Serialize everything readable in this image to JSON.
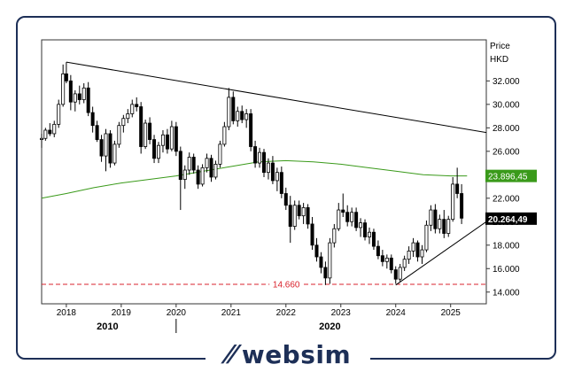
{
  "chart_data": {
    "type": "candlestick",
    "axis": {
      "title_line1": "Price",
      "title_line2": "HKD",
      "y_ticks": [
        14,
        16,
        18,
        20,
        22,
        24,
        26,
        28,
        30,
        32
      ],
      "y_tick_labels": [
        "14.000",
        "16.000",
        "18.000",
        "20.000",
        "22.000",
        "24.000",
        "26.000",
        "28.000",
        "30.000",
        "32.000"
      ],
      "ylim": [
        13,
        35.5
      ],
      "x_ticks": [
        2018,
        2019,
        2020,
        2021,
        2022,
        2023,
        2024,
        2025
      ],
      "x_tick_labels": [
        "2018",
        "2019",
        "2020",
        "2021",
        "2022",
        "2023",
        "2024",
        "2025"
      ],
      "xlim": [
        2017.55,
        2025.65
      ],
      "x_group_labels": [
        {
          "x": 2018.75,
          "label": "2010"
        },
        {
          "x": 2022.8,
          "label": "2020"
        }
      ]
    },
    "moving_average": {
      "color": "#3a9a1a",
      "label": "23.896,45",
      "points": [
        [
          2017.55,
          22.0
        ],
        [
          2018.0,
          22.4
        ],
        [
          2018.5,
          22.9
        ],
        [
          2019.0,
          23.3
        ],
        [
          2019.5,
          23.6
        ],
        [
          2020.0,
          23.9
        ],
        [
          2020.5,
          24.3
        ],
        [
          2021.0,
          24.7
        ],
        [
          2021.5,
          25.1
        ],
        [
          2022.0,
          25.2
        ],
        [
          2022.5,
          25.1
        ],
        [
          2023.0,
          24.9
        ],
        [
          2023.5,
          24.6
        ],
        [
          2024.0,
          24.3
        ],
        [
          2024.5,
          24.0
        ],
        [
          2025.0,
          23.9
        ],
        [
          2025.3,
          23.9
        ]
      ]
    },
    "last_price": {
      "label": "20.264,49",
      "value": 20.26
    },
    "support_level": {
      "value": 14.66,
      "label": "14.660",
      "color": "#d9232d"
    },
    "trendlines": [
      {
        "from": [
          2018.0,
          33.6
        ],
        "to": [
          2025.65,
          27.6
        ]
      },
      {
        "from": [
          2024.0,
          14.6
        ],
        "to": [
          2025.65,
          20.0
        ]
      }
    ],
    "candles": [
      [
        2017.55,
        27.0,
        27.5,
        26.3,
        27.1
      ],
      [
        2017.62,
        27.1,
        28.0,
        26.9,
        27.8
      ],
      [
        2017.7,
        27.8,
        28.4,
        27.3,
        27.5
      ],
      [
        2017.78,
        27.5,
        28.6,
        27.2,
        28.3
      ],
      [
        2017.86,
        28.3,
        30.4,
        28.0,
        30.0
      ],
      [
        2017.94,
        30.0,
        33.4,
        29.8,
        32.6
      ],
      [
        2018.0,
        32.6,
        33.6,
        31.8,
        32.0
      ],
      [
        2018.08,
        32.0,
        32.5,
        29.5,
        30.2
      ],
      [
        2018.16,
        30.2,
        31.2,
        29.4,
        30.9
      ],
      [
        2018.24,
        30.9,
        31.6,
        30.0,
        30.4
      ],
      [
        2018.32,
        30.4,
        31.8,
        30.1,
        31.4
      ],
      [
        2018.4,
        31.4,
        31.9,
        29.0,
        29.3
      ],
      [
        2018.48,
        29.3,
        29.8,
        27.6,
        28.2
      ],
      [
        2018.56,
        28.2,
        28.6,
        26.8,
        27.0
      ],
      [
        2018.64,
        27.0,
        27.4,
        25.1,
        25.6
      ],
      [
        2018.72,
        25.6,
        27.9,
        24.3,
        27.5
      ],
      [
        2018.8,
        27.5,
        27.8,
        24.6,
        25.0
      ],
      [
        2018.88,
        25.0,
        26.9,
        24.8,
        26.6
      ],
      [
        2018.96,
        26.6,
        28.5,
        26.3,
        28.2
      ],
      [
        2019.04,
        28.2,
        29.1,
        27.6,
        28.8
      ],
      [
        2019.12,
        28.8,
        29.6,
        28.4,
        29.2
      ],
      [
        2019.2,
        29.2,
        30.4,
        28.9,
        30.0
      ],
      [
        2019.28,
        30.0,
        30.6,
        29.4,
        29.8
      ],
      [
        2019.36,
        29.8,
        30.2,
        25.8,
        26.4
      ],
      [
        2019.44,
        26.4,
        28.7,
        26.2,
        28.4
      ],
      [
        2019.52,
        28.4,
        28.9,
        26.6,
        27.0
      ],
      [
        2019.6,
        27.0,
        27.4,
        25.0,
        25.4
      ],
      [
        2019.68,
        25.4,
        26.8,
        25.0,
        26.5
      ],
      [
        2019.76,
        26.5,
        27.8,
        25.9,
        27.4
      ],
      [
        2019.84,
        27.4,
        27.9,
        25.8,
        26.2
      ],
      [
        2019.92,
        26.2,
        28.6,
        26.0,
        28.1
      ],
      [
        2020.0,
        28.1,
        28.5,
        25.6,
        26.0
      ],
      [
        2020.08,
        26.0,
        26.4,
        21.0,
        23.6
      ],
      [
        2020.16,
        23.6,
        24.8,
        22.8,
        24.4
      ],
      [
        2020.24,
        24.4,
        25.9,
        24.0,
        25.5
      ],
      [
        2020.32,
        25.5,
        25.8,
        24.1,
        24.4
      ],
      [
        2020.4,
        24.4,
        24.8,
        22.8,
        23.2
      ],
      [
        2020.48,
        23.2,
        24.9,
        23.0,
        24.6
      ],
      [
        2020.56,
        24.6,
        25.8,
        24.2,
        25.4
      ],
      [
        2020.64,
        25.4,
        25.7,
        23.4,
        23.8
      ],
      [
        2020.72,
        23.8,
        25.2,
        23.6,
        24.9
      ],
      [
        2020.8,
        24.9,
        26.9,
        24.6,
        26.6
      ],
      [
        2020.88,
        26.6,
        28.5,
        26.4,
        28.1
      ],
      [
        2020.96,
        28.1,
        31.4,
        27.8,
        30.6
      ],
      [
        2021.04,
        30.6,
        31.1,
        28.3,
        28.6
      ],
      [
        2021.12,
        28.6,
        29.8,
        28.1,
        29.4
      ],
      [
        2021.2,
        29.4,
        29.9,
        28.4,
        28.7
      ],
      [
        2021.28,
        28.7,
        29.6,
        28.0,
        29.2
      ],
      [
        2021.36,
        29.2,
        29.6,
        26.0,
        26.4
      ],
      [
        2021.44,
        26.4,
        26.9,
        24.6,
        25.0
      ],
      [
        2021.52,
        25.0,
        26.3,
        24.6,
        25.9
      ],
      [
        2021.6,
        25.9,
        26.2,
        23.8,
        24.2
      ],
      [
        2021.68,
        24.2,
        25.4,
        23.6,
        25.0
      ],
      [
        2021.76,
        25.0,
        25.6,
        23.2,
        23.5
      ],
      [
        2021.84,
        23.5,
        24.6,
        22.6,
        24.2
      ],
      [
        2021.92,
        24.2,
        24.7,
        22.0,
        22.4
      ],
      [
        2022.0,
        22.4,
        22.9,
        21.0,
        21.4
      ],
      [
        2022.08,
        21.4,
        22.2,
        18.2,
        19.6
      ],
      [
        2022.16,
        19.6,
        21.8,
        19.3,
        21.4
      ],
      [
        2022.24,
        21.4,
        21.8,
        20.2,
        20.5
      ],
      [
        2022.32,
        20.5,
        21.6,
        19.8,
        21.2
      ],
      [
        2022.4,
        21.2,
        21.5,
        19.4,
        19.8
      ],
      [
        2022.48,
        19.8,
        20.4,
        17.6,
        18.0
      ],
      [
        2022.56,
        18.0,
        18.6,
        16.6,
        17.0
      ],
      [
        2022.64,
        17.0,
        17.4,
        15.6,
        16.1
      ],
      [
        2022.72,
        16.1,
        16.6,
        14.6,
        15.2
      ],
      [
        2022.8,
        15.2,
        18.6,
        14.7,
        18.2
      ],
      [
        2022.88,
        18.2,
        19.8,
        17.8,
        19.4
      ],
      [
        2022.96,
        19.4,
        21.6,
        19.2,
        21.0
      ],
      [
        2023.04,
        21.0,
        22.4,
        20.4,
        20.8
      ],
      [
        2023.12,
        20.8,
        21.4,
        19.6,
        20.0
      ],
      [
        2023.2,
        20.0,
        21.2,
        19.6,
        20.8
      ],
      [
        2023.28,
        20.8,
        21.2,
        19.2,
        19.5
      ],
      [
        2023.36,
        19.5,
        20.3,
        18.7,
        19.9
      ],
      [
        2023.44,
        19.9,
        20.2,
        18.4,
        18.7
      ],
      [
        2023.52,
        18.7,
        19.5,
        18.1,
        19.1
      ],
      [
        2023.6,
        19.1,
        19.4,
        17.6,
        17.9
      ],
      [
        2023.68,
        17.9,
        18.4,
        16.8,
        17.1
      ],
      [
        2023.76,
        17.1,
        17.6,
        16.2,
        16.6
      ],
      [
        2023.84,
        16.6,
        17.2,
        16.0,
        16.9
      ],
      [
        2023.92,
        16.9,
        17.2,
        15.6,
        15.9
      ],
      [
        2024.0,
        15.9,
        16.2,
        14.7,
        15.1
      ],
      [
        2024.08,
        15.1,
        16.4,
        14.9,
        16.1
      ],
      [
        2024.16,
        16.1,
        17.1,
        15.8,
        16.8
      ],
      [
        2024.24,
        16.8,
        17.9,
        16.4,
        17.5
      ],
      [
        2024.32,
        17.5,
        18.6,
        17.0,
        18.2
      ],
      [
        2024.4,
        18.2,
        18.4,
        16.6,
        17.0
      ],
      [
        2024.48,
        17.0,
        18.0,
        16.4,
        17.6
      ],
      [
        2024.56,
        17.6,
        20.1,
        17.4,
        19.7
      ],
      [
        2024.64,
        19.7,
        21.4,
        19.2,
        21.0
      ],
      [
        2024.72,
        21.0,
        21.5,
        19.0,
        19.4
      ],
      [
        2024.8,
        19.4,
        20.6,
        19.0,
        20.2
      ],
      [
        2024.88,
        20.2,
        21.0,
        18.6,
        19.0
      ],
      [
        2024.96,
        19.0,
        20.5,
        18.7,
        20.2
      ],
      [
        2025.04,
        20.2,
        23.8,
        20.0,
        23.2
      ],
      [
        2025.12,
        23.2,
        24.6,
        22.0,
        22.4
      ],
      [
        2025.2,
        22.4,
        23.2,
        19.8,
        20.3
      ]
    ]
  }
}
